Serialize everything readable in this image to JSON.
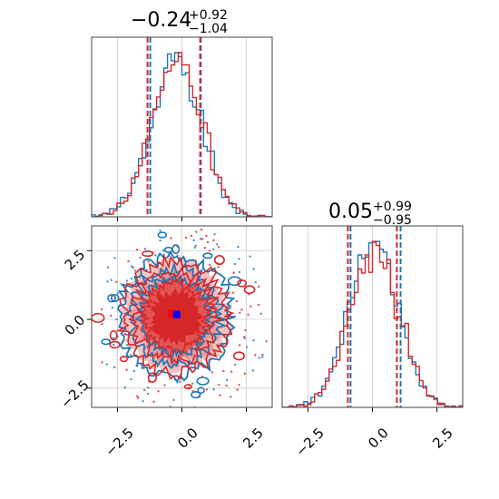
{
  "chart_data": {
    "type": "corner",
    "colors": {
      "series_a": "#1f77b4",
      "series_b": "#d62728"
    },
    "series": [
      {
        "color": "#1f77b4"
      },
      {
        "color": "#d62728"
      }
    ],
    "panels": [
      {
        "id": "param0-hist",
        "type": "histogram",
        "xlim": [
          -3.5,
          3.5
        ],
        "title": {
          "median": "−0.24",
          "upper": "+0.92",
          "lower": "−1.04"
        },
        "quantile_lines": [
          -1.28,
          0.68
        ],
        "quantile_lines_b": [
          -1.28,
          0.76
        ],
        "truth": -0.24
      },
      {
        "id": "param1-hist",
        "type": "histogram",
        "xlim": [
          -3.5,
          3.5
        ],
        "xticks": [
          "−2.5",
          "0.0",
          "2.5"
        ],
        "xtick_values": [
          -2.5,
          0.0,
          2.5
        ],
        "title": {
          "median": "0.05",
          "upper": "+0.99",
          "lower": "−0.95"
        },
        "quantile_lines": [
          -0.9,
          1.04
        ],
        "quantile_lines_b": [
          -0.9,
          1.0
        ],
        "truth": 0.05
      },
      {
        "id": "joint-contour",
        "type": "contour",
        "xlim": [
          -3.5,
          3.5
        ],
        "ylim": [
          -3.2,
          3.4
        ],
        "xticks": [
          "−2.5",
          "0.0",
          "2.5"
        ],
        "xtick_values": [
          -2.5,
          0.0,
          2.5
        ],
        "yticks": [
          "−2.5",
          "0.0",
          "2.5"
        ],
        "ytick_values": [
          -2.5,
          0.0,
          2.5
        ],
        "marker_a": {
          "x": -0.2,
          "y": 0.18
        },
        "marker_b": {
          "x": -0.4,
          "y": 0.22
        }
      }
    ]
  }
}
